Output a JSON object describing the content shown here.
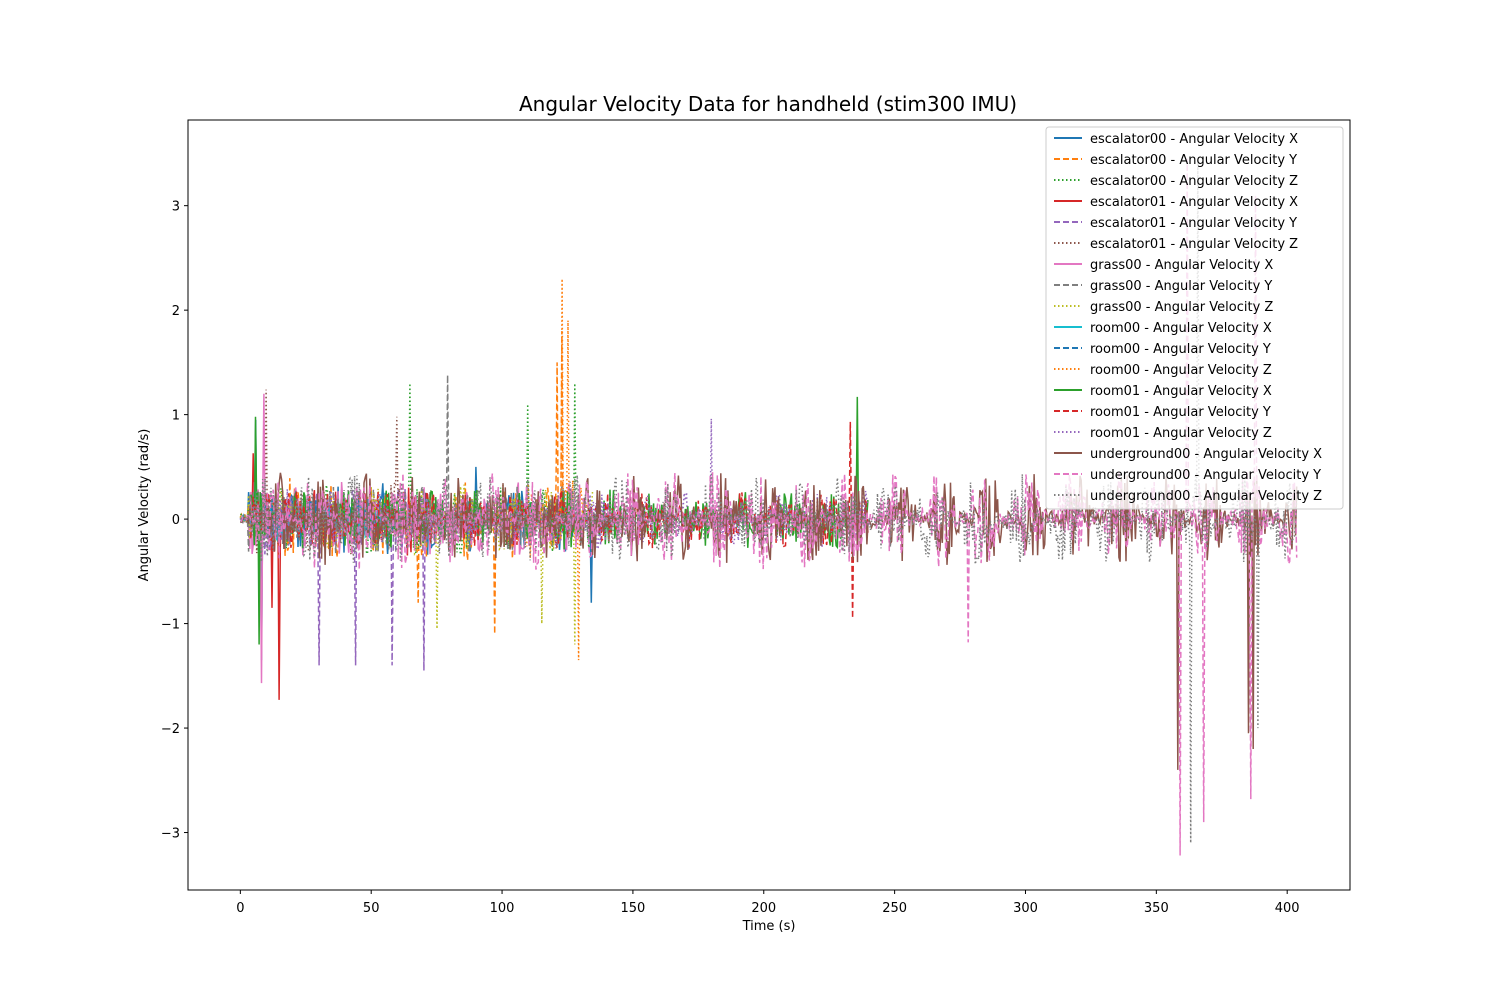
{
  "chart_data": {
    "type": "line",
    "title": "Angular Velocity Data for handheld (stim300 IMU)",
    "xlabel": "Time (s)",
    "ylabel": "Angular Velocity (rad/s)",
    "xlim": [
      -20,
      424
    ],
    "ylim": [
      -3.55,
      3.82
    ],
    "xticks": [
      0,
      50,
      100,
      150,
      200,
      250,
      300,
      350,
      400
    ],
    "yticks": [
      -3,
      -2,
      -1,
      0,
      1,
      2,
      3
    ],
    "grid": false,
    "legend_position": "top-right",
    "series": [
      {
        "name": "escalator00 - Angular Velocity X",
        "color": "#1f77b4",
        "dash": "solid",
        "range": [
          0,
          135
        ],
        "amp": 0.35,
        "spikes": [
          [
            6,
            0.95
          ],
          [
            8,
            -1.35
          ],
          [
            90,
            0.5
          ],
          [
            134,
            -0.8
          ]
        ]
      },
      {
        "name": "escalator00 - Angular Velocity Y",
        "color": "#ff7f0e",
        "dash": "dashed",
        "range": [
          0,
          135
        ],
        "amp": 0.4,
        "spikes": [
          [
            68,
            -0.8
          ],
          [
            97,
            -1.1
          ],
          [
            121,
            1.5
          ],
          [
            123,
            1.8
          ]
        ]
      },
      {
        "name": "escalator00 - Angular Velocity Z",
        "color": "#2ca02c",
        "dash": "dotted",
        "range": [
          0,
          135
        ],
        "amp": 0.35,
        "spikes": [
          [
            65,
            1.3
          ],
          [
            110,
            1.1
          ],
          [
            128,
            1.3
          ]
        ]
      },
      {
        "name": "escalator01 - Angular Velocity X",
        "color": "#d62728",
        "dash": "solid",
        "range": [
          4,
          72
        ],
        "amp": 0.35,
        "spikes": [
          [
            5,
            0.63
          ],
          [
            15,
            -1.73
          ],
          [
            12,
            -0.85
          ]
        ]
      },
      {
        "name": "escalator01 - Angular Velocity Y",
        "color": "#9467bd",
        "dash": "dashed",
        "range": [
          4,
          72
        ],
        "amp": 0.35,
        "spikes": [
          [
            30,
            -1.4
          ],
          [
            44,
            -1.4
          ],
          [
            58,
            -1.4
          ],
          [
            70,
            -1.45
          ]
        ]
      },
      {
        "name": "escalator01 - Angular Velocity Z",
        "color": "#8c564b",
        "dash": "dotted",
        "range": [
          4,
          72
        ],
        "amp": 0.35,
        "spikes": [
          [
            10,
            1.24
          ],
          [
            60,
            0.98
          ]
        ]
      },
      {
        "name": "grass00 - Angular Velocity X",
        "color": "#e377c2",
        "dash": "solid",
        "range": [
          0,
          135
        ],
        "amp": 0.4,
        "spikes": [
          [
            8,
            -1.57
          ],
          [
            9,
            1.2
          ]
        ]
      },
      {
        "name": "grass00 - Angular Velocity Y",
        "color": "#7f7f7f",
        "dash": "dashed",
        "range": [
          0,
          135
        ],
        "amp": 0.35,
        "spikes": [
          [
            79,
            1.38
          ]
        ]
      },
      {
        "name": "grass00 - Angular Velocity Z",
        "color": "#bcbd22",
        "dash": "dotted",
        "range": [
          0,
          135
        ],
        "amp": 0.35,
        "spikes": [
          [
            75,
            -1.05
          ],
          [
            115,
            -1.0
          ],
          [
            128,
            -1.2
          ]
        ]
      },
      {
        "name": "room00 - Angular Velocity X",
        "color": "#17becf",
        "dash": "solid",
        "range": [
          0,
          60
        ],
        "amp": 0.2,
        "spikes": []
      },
      {
        "name": "room00 - Angular Velocity Y",
        "color": "#1f77b4",
        "dash": "dashed",
        "range": [
          0,
          60
        ],
        "amp": 0.2,
        "spikes": []
      },
      {
        "name": "room00 - Angular Velocity Z",
        "color": "#ff7f0e",
        "dash": "dotted",
        "range": [
          100,
          135
        ],
        "amp": 0.4,
        "spikes": [
          [
            123,
            2.3
          ],
          [
            125,
            1.9
          ],
          [
            129,
            -1.35
          ]
        ]
      },
      {
        "name": "room01 - Angular Velocity X",
        "color": "#2ca02c",
        "dash": "solid",
        "range": [
          4,
          240
        ],
        "amp": 0.3,
        "spikes": [
          [
            6,
            0.98
          ],
          [
            7,
            -1.2
          ],
          [
            236,
            1.17
          ]
        ]
      },
      {
        "name": "room01 - Angular Velocity Y",
        "color": "#d62728",
        "dash": "dashed",
        "range": [
          4,
          240
        ],
        "amp": 0.3,
        "spikes": [
          [
            233,
            0.93
          ],
          [
            234,
            -0.95
          ]
        ]
      },
      {
        "name": "room01 - Angular Velocity Z",
        "color": "#9467bd",
        "dash": "dotted",
        "range": [
          4,
          240
        ],
        "amp": 0.3,
        "spikes": [
          [
            180,
            0.96
          ]
        ]
      },
      {
        "name": "underground00 - Angular Velocity X",
        "color": "#8c564b",
        "dash": "solid",
        "range": [
          0,
          404
        ],
        "amp": 0.45,
        "spikes": [
          [
            358,
            -2.4
          ],
          [
            385,
            -2.05
          ],
          [
            387,
            -2.2
          ]
        ]
      },
      {
        "name": "underground00 - Angular Velocity Y",
        "color": "#e377c2",
        "dash": "dashed",
        "range": [
          0,
          404
        ],
        "amp": 0.5,
        "spikes": [
          [
            359,
            -3.22
          ],
          [
            362,
            3.45
          ],
          [
            368,
            -2.9
          ],
          [
            386,
            -2.68
          ],
          [
            388,
            3.1
          ],
          [
            278,
            -1.18
          ]
        ]
      },
      {
        "name": "underground00 - Angular Velocity Z",
        "color": "#7f7f7f",
        "dash": "dotted",
        "range": [
          0,
          404
        ],
        "amp": 0.45,
        "spikes": [
          [
            363,
            -3.1
          ],
          [
            366,
            3.45
          ],
          [
            389,
            -2.0
          ]
        ]
      }
    ]
  }
}
